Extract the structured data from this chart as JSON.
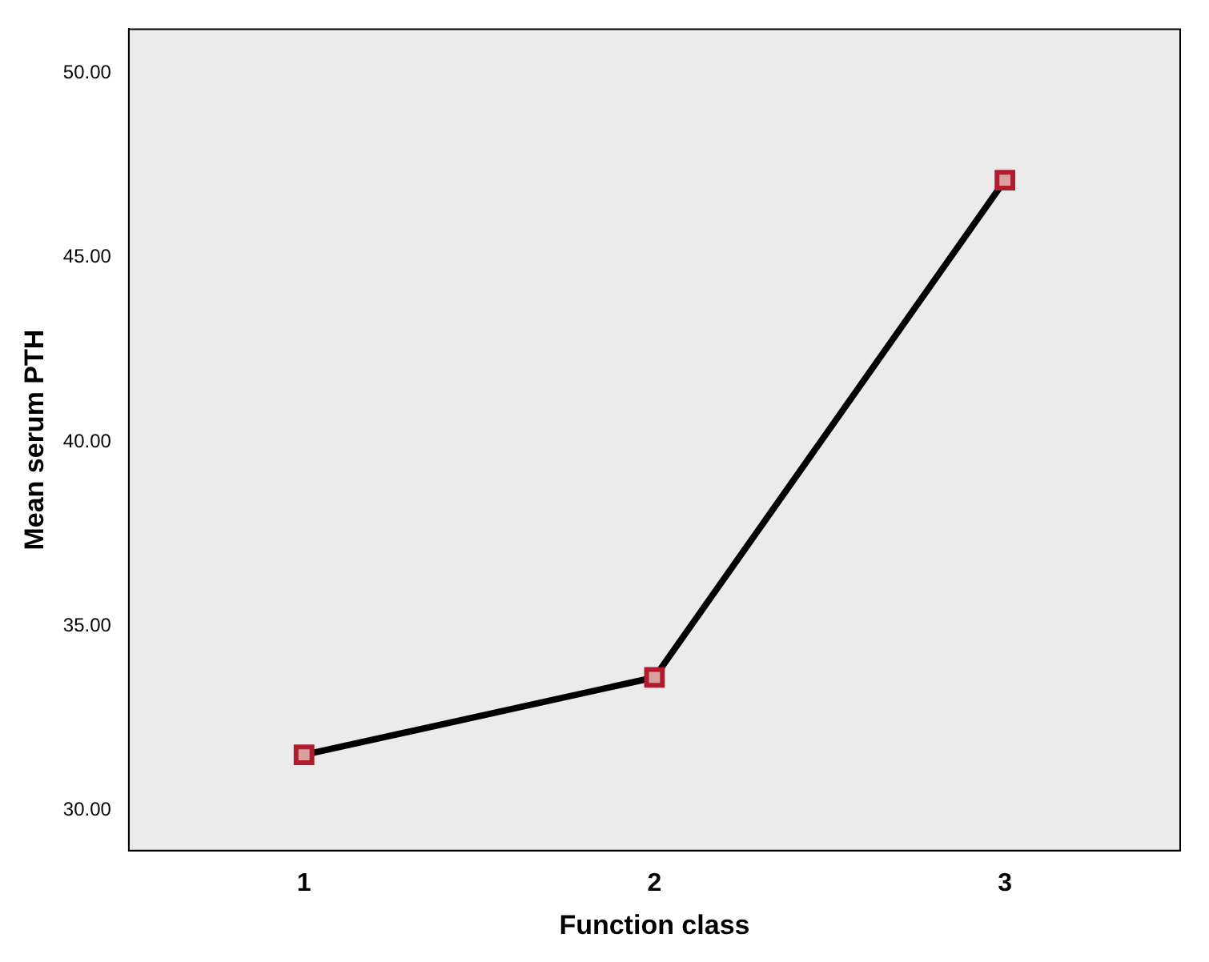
{
  "chart_data": {
    "type": "line",
    "xlabel": "Function class",
    "ylabel": "Mean serum PTH",
    "categories": [
      "1",
      "2",
      "3"
    ],
    "series": [
      {
        "color": "#000000",
        "values": [
          31.5,
          33.6,
          47.1
        ]
      }
    ],
    "ylim": [
      28.9,
      51.2
    ],
    "yticks": [
      {
        "value": 30,
        "label": "30.00"
      },
      {
        "value": 35,
        "label": "35.00"
      },
      {
        "value": 40,
        "label": "40.00"
      },
      {
        "value": 45,
        "label": "45.00"
      },
      {
        "value": 50,
        "label": "50.00"
      }
    ],
    "marker": "square",
    "line_style": "solid",
    "grid": false,
    "legend": false
  }
}
